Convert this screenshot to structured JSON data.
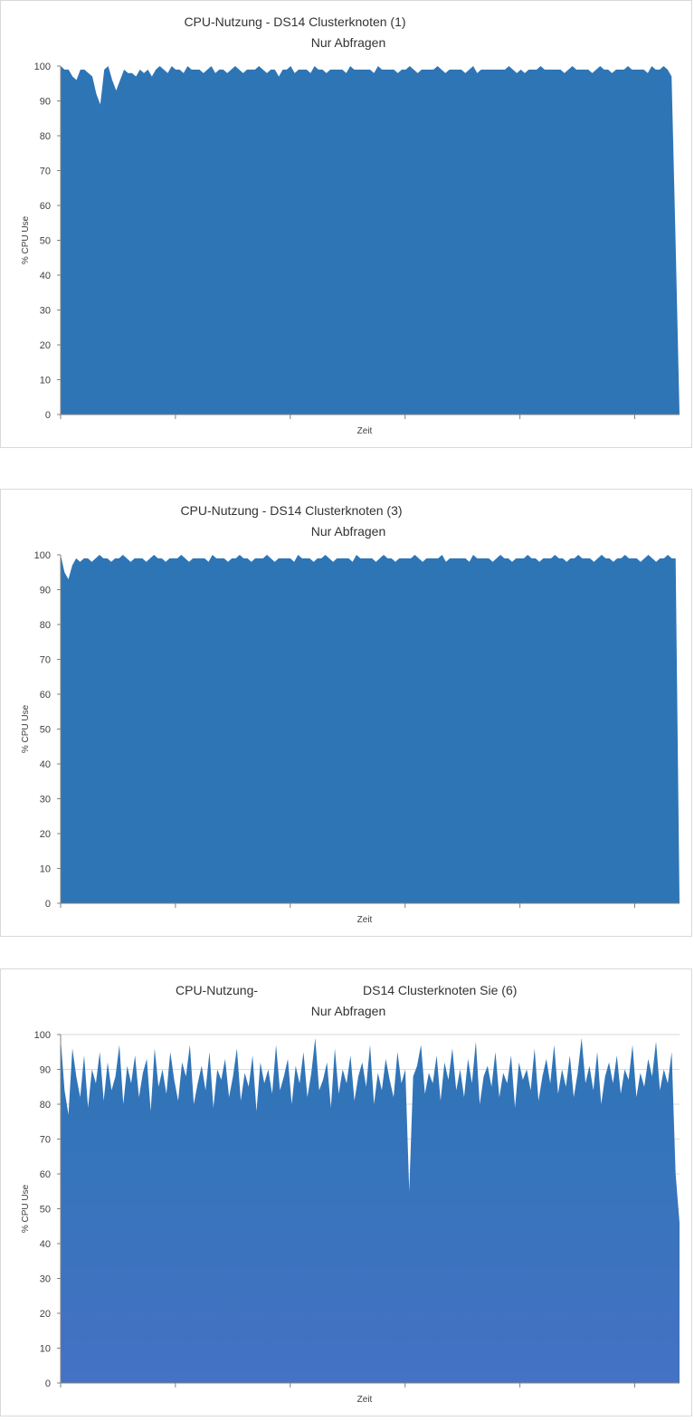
{
  "chart_data": [
    {
      "type": "area",
      "title": "CPU-Nutzung - DS14 Clusterknoten (1)",
      "subtitle": "Nur Abfragen",
      "xlabel": "Zeit",
      "ylabel": "% CPU Use",
      "ylim": [
        0,
        100
      ],
      "yticks": [
        0,
        10,
        20,
        30,
        40,
        50,
        60,
        70,
        80,
        90,
        100
      ],
      "grid": false,
      "series": [
        {
          "color": "#2e75b6",
          "values": [
            100,
            99,
            99,
            97,
            96,
            99,
            99,
            98,
            97,
            92,
            89,
            99,
            100,
            96,
            93,
            96,
            99,
            98,
            98,
            97,
            99,
            98,
            99,
            97,
            99,
            100,
            99,
            98,
            100,
            99,
            99,
            98,
            100,
            99,
            99,
            99,
            98,
            99,
            100,
            98,
            99,
            99,
            98,
            99,
            100,
            99,
            98,
            99,
            99,
            99,
            100,
            99,
            98,
            99,
            99,
            97,
            99,
            99,
            100,
            98,
            99,
            99,
            99,
            98,
            100,
            99,
            99,
            98,
            99,
            99,
            99,
            99,
            98,
            100,
            99,
            99,
            99,
            99,
            99,
            98,
            100,
            99,
            99,
            99,
            99,
            98,
            99,
            99,
            100,
            99,
            98,
            99,
            99,
            99,
            99,
            100,
            99,
            98,
            99,
            99,
            99,
            99,
            98,
            99,
            100,
            98,
            99,
            99,
            99,
            99,
            99,
            99,
            99,
            100,
            99,
            98,
            99,
            98,
            99,
            99,
            99,
            100,
            99,
            99,
            99,
            99,
            99,
            98,
            99,
            100,
            99,
            99,
            99,
            99,
            98,
            99,
            100,
            99,
            99,
            98,
            99,
            99,
            99,
            100,
            99,
            99,
            99,
            99,
            98,
            100,
            99,
            99,
            100,
            99,
            97,
            50,
            0
          ]
        }
      ]
    },
    {
      "type": "area",
      "title": "CPU-Nutzung - DS14 Clusterknoten (3)",
      "subtitle": "Nur Abfragen",
      "xlabel": "Zeit",
      "ylabel": "% CPU Use",
      "ylim": [
        0,
        100
      ],
      "yticks": [
        0,
        10,
        20,
        30,
        40,
        50,
        60,
        70,
        80,
        90,
        100
      ],
      "grid": false,
      "series": [
        {
          "color": "#2e75b6",
          "values": [
            100,
            95,
            93,
            97,
            99,
            98,
            99,
            99,
            98,
            99,
            100,
            99,
            99,
            98,
            99,
            99,
            100,
            99,
            98,
            99,
            99,
            99,
            98,
            99,
            100,
            99,
            99,
            98,
            99,
            99,
            99,
            100,
            99,
            98,
            99,
            99,
            99,
            99,
            98,
            100,
            99,
            99,
            99,
            98,
            99,
            99,
            100,
            99,
            99,
            98,
            99,
            99,
            99,
            100,
            99,
            98,
            99,
            99,
            99,
            99,
            98,
            100,
            99,
            99,
            99,
            98,
            99,
            99,
            100,
            99,
            98,
            99,
            99,
            99,
            99,
            98,
            100,
            99,
            99,
            99,
            99,
            98,
            99,
            100,
            99,
            99,
            98,
            99,
            99,
            99,
            99,
            100,
            99,
            98,
            99,
            99,
            99,
            99,
            100,
            98,
            99,
            99,
            99,
            99,
            99,
            98,
            100,
            99,
            99,
            99,
            99,
            98,
            99,
            100,
            99,
            99,
            98,
            99,
            99,
            99,
            100,
            99,
            99,
            98,
            99,
            99,
            99,
            100,
            99,
            99,
            98,
            99,
            99,
            100,
            99,
            99,
            99,
            98,
            99,
            100,
            99,
            99,
            98,
            99,
            99,
            100,
            99,
            99,
            99,
            98,
            99,
            100,
            99,
            98,
            99,
            99,
            100,
            99,
            99,
            0
          ]
        }
      ]
    },
    {
      "type": "area",
      "title": "CPU-Nutzung- DS14 Clusterknoten Sie (6)",
      "subtitle": "Nur Abfragen",
      "xlabel": "Zeit",
      "ylabel": "% CPU Use",
      "ylim": [
        0,
        100
      ],
      "yticks": [
        0,
        10,
        20,
        30,
        40,
        50,
        60,
        70,
        80,
        90,
        100
      ],
      "grid": true,
      "series": [
        {
          "color_top": "#2e75b6",
          "color_bottom": "#4472c4",
          "values": [
            99,
            84,
            77,
            96,
            88,
            82,
            94,
            79,
            90,
            86,
            95,
            81,
            92,
            84,
            88,
            97,
            80,
            91,
            86,
            94,
            82,
            89,
            93,
            78,
            96,
            85,
            90,
            83,
            95,
            87,
            81,
            92,
            88,
            97,
            80,
            86,
            91,
            84,
            95,
            79,
            90,
            87,
            93,
            82,
            88,
            96,
            81,
            89,
            85,
            94,
            78,
            92,
            86,
            90,
            83,
            97,
            84,
            88,
            93,
            80,
            91,
            86,
            95,
            82,
            89,
            99,
            84,
            87,
            92,
            79,
            96,
            83,
            90,
            86,
            94,
            81,
            88,
            92,
            85,
            97,
            80,
            89,
            84,
            93,
            87,
            82,
            95,
            86,
            90,
            55,
            88,
            91,
            97,
            83,
            89,
            86,
            94,
            81,
            92,
            87,
            96,
            84,
            90,
            82,
            93,
            86,
            98,
            80,
            88,
            91,
            85,
            95,
            82,
            89,
            86,
            94,
            79,
            92,
            87,
            90,
            84,
            96,
            81,
            88,
            93,
            86,
            97,
            83,
            90,
            85,
            94,
            82,
            89,
            99,
            86,
            91,
            84,
            95,
            80,
            88,
            92,
            86,
            94,
            83,
            90,
            87,
            97,
            82,
            89,
            85,
            93,
            88,
            98,
            84,
            90,
            86,
            95,
            60,
            46
          ]
        }
      ]
    }
  ]
}
